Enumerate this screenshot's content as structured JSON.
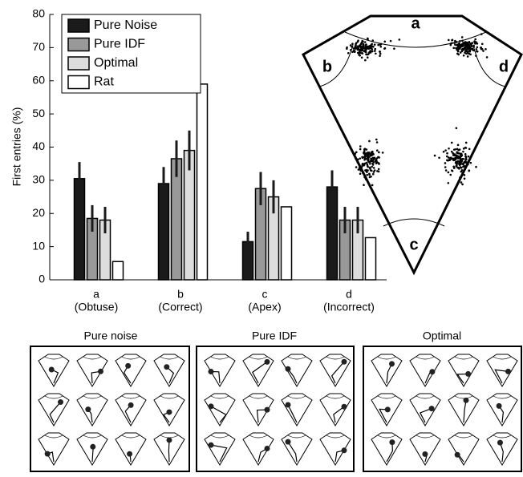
{
  "chart_data": {
    "type": "bar",
    "ylabel": "First entries (%)",
    "categories": [
      [
        "a",
        "(Obtuse)"
      ],
      [
        "b",
        "(Correct)"
      ],
      [
        "c",
        "(Apex)"
      ],
      [
        "d",
        "(Incorrect)"
      ]
    ],
    "series": [
      {
        "name": "Pure Noise",
        "color": "#1a1a1a",
        "values": [
          30.5,
          29,
          11.5,
          28
        ],
        "errors": [
          5,
          5,
          3,
          5
        ]
      },
      {
        "name": "Pure IDF",
        "color": "#999999",
        "values": [
          18.5,
          36.5,
          27.5,
          18
        ],
        "errors": [
          4,
          5.5,
          5,
          4
        ]
      },
      {
        "name": "Optimal",
        "color": "#dddddd",
        "values": [
          18,
          39,
          25,
          18
        ],
        "errors": [
          4,
          6,
          5,
          4
        ]
      },
      {
        "name": "Rat",
        "color": "#ffffff",
        "values": [
          5.5,
          59,
          22,
          12.7
        ]
      }
    ],
    "ylim": [
      0,
      80
    ],
    "yticks": [
      0,
      10,
      20,
      30,
      40,
      50,
      60,
      70,
      80
    ],
    "legend": "upper left"
  },
  "kite": {
    "labels": [
      "a",
      "b",
      "c",
      "d"
    ]
  },
  "panels": [
    "Pure noise",
    "Pure IDF",
    "Optimal"
  ]
}
